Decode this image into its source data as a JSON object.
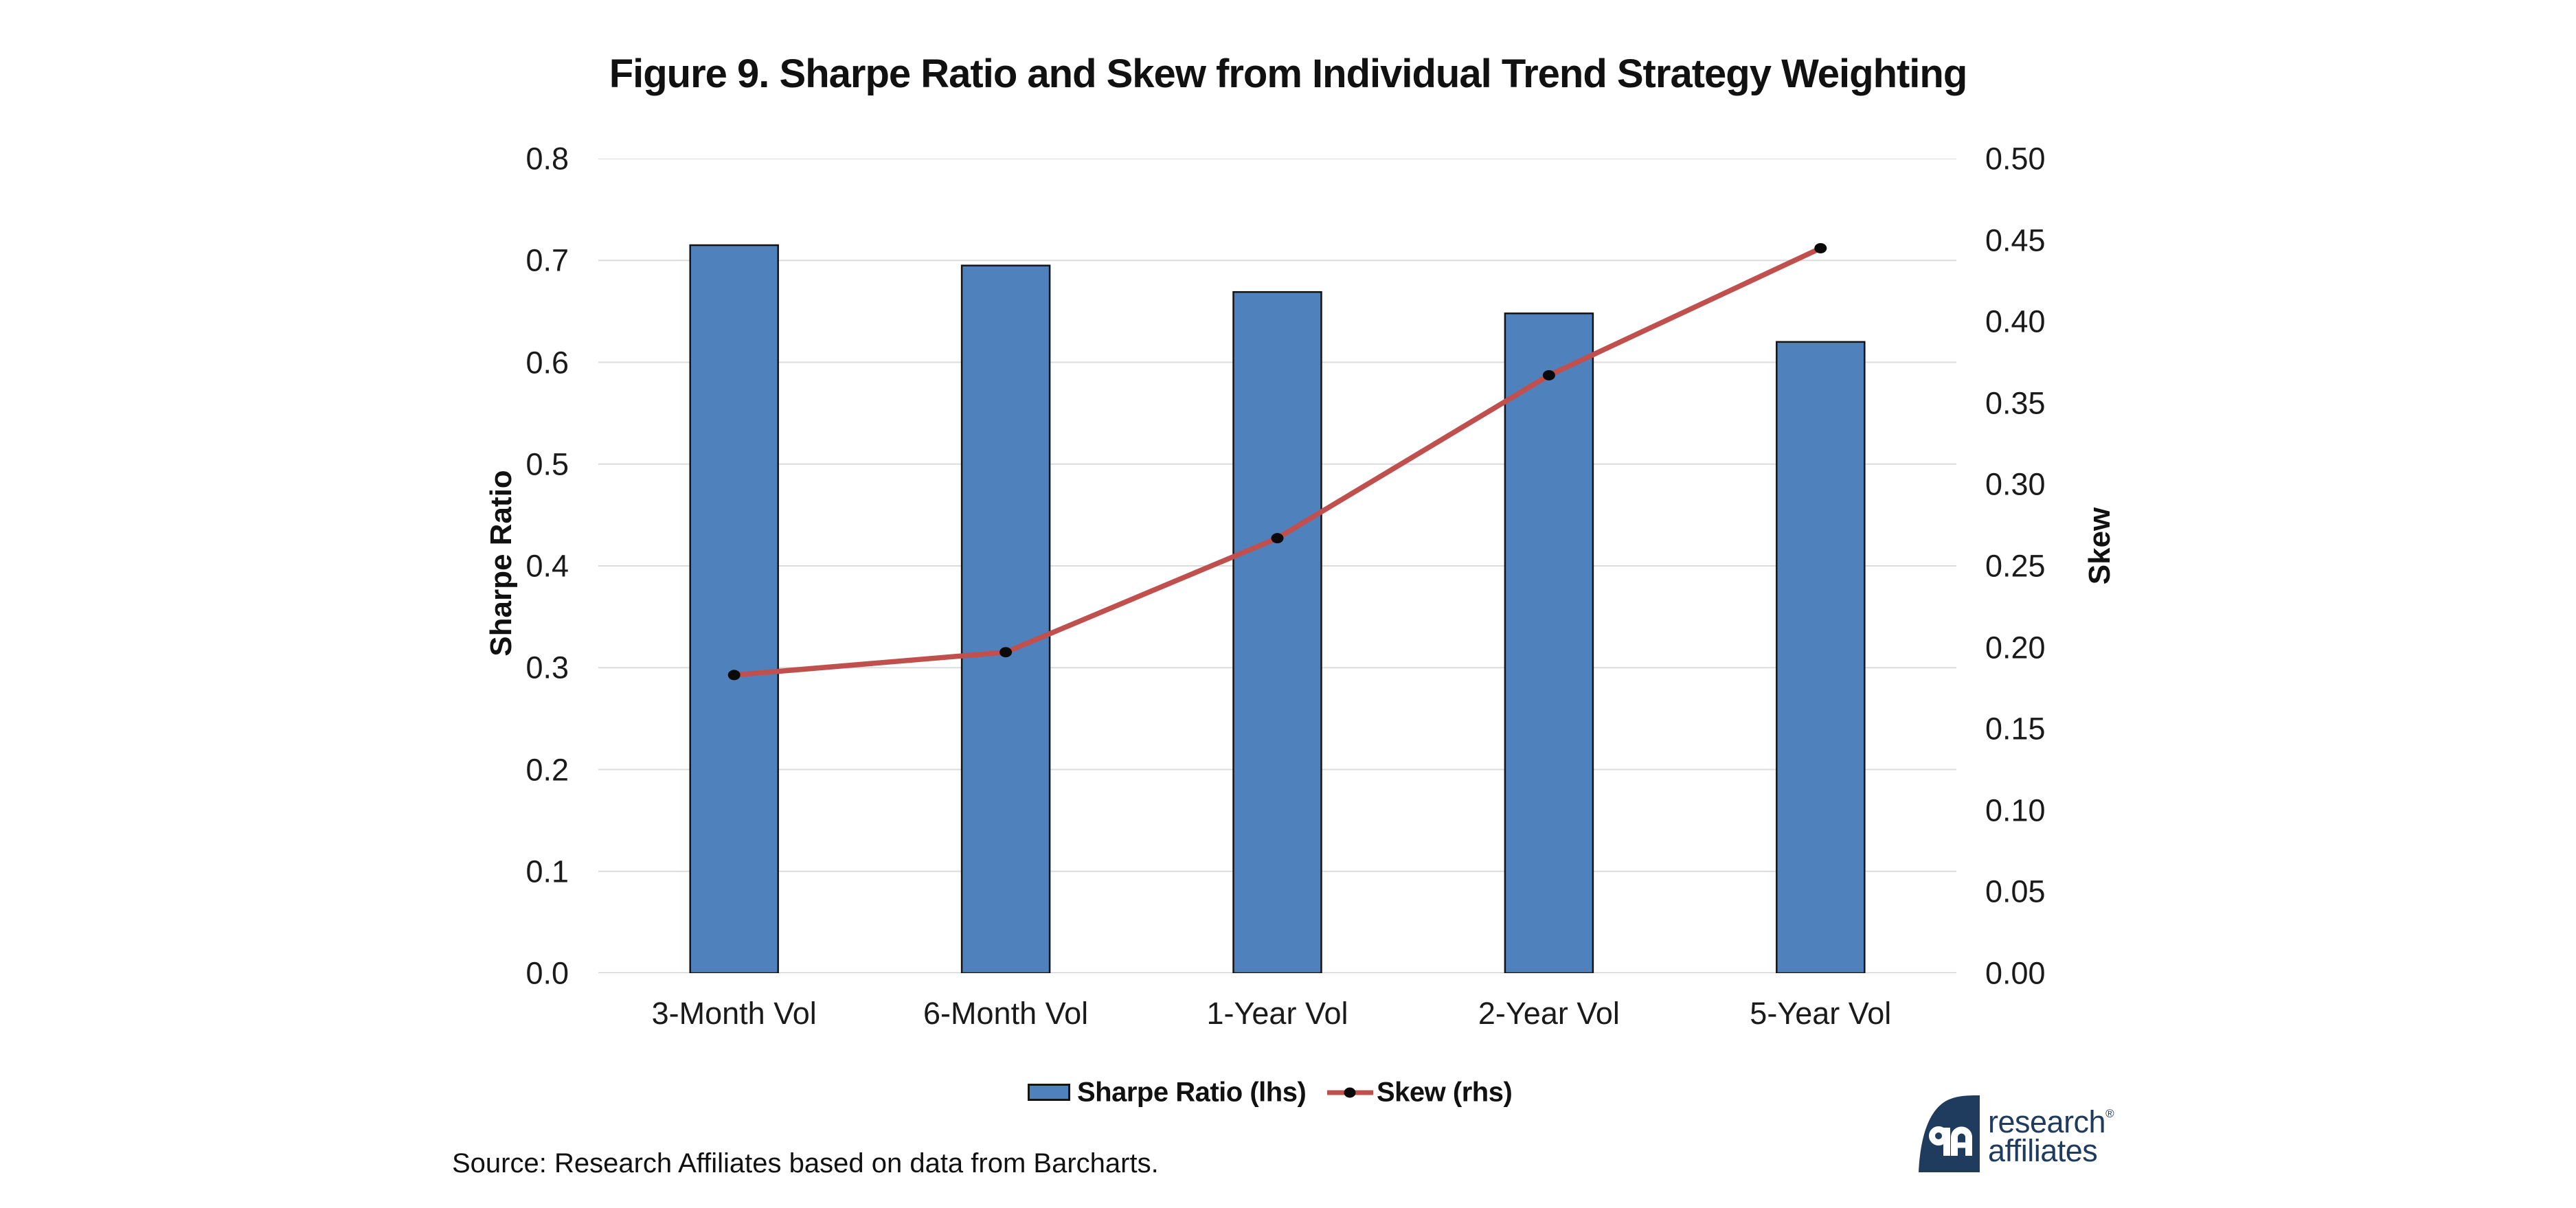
{
  "figure": {
    "title": "Figure 9. Sharpe Ratio and Skew from Individual Trend Strategy Weighting",
    "source_note": "Source: Research Affiliates based on data from Barcharts."
  },
  "legend": {
    "items": [
      {
        "label": "Sharpe Ratio (lhs)",
        "swatch": "bar",
        "color": "#4F81BD",
        "border_color": "#141414"
      },
      {
        "label": "Skew (rhs)",
        "swatch": "line-with-marker",
        "color": "#C0504D",
        "marker_color": "#0a0a0a"
      }
    ]
  },
  "logo": {
    "monogram": "RA",
    "line1": "research",
    "line2": "affiliates",
    "registered": "®",
    "navy": "#1f3b5d"
  },
  "chart_data": {
    "type": "bar",
    "subtype": "dual-axis column + line",
    "title": "Figure 9. Sharpe Ratio and Skew from Individual Trend Strategy Weighting",
    "categories": [
      "3-Month Vol",
      "6-Month Vol",
      "1-Year Vol",
      "2-Year Vol",
      "5-Year Vol"
    ],
    "series": [
      {
        "name": "Sharpe Ratio (lhs)",
        "type": "bar",
        "axis": "left",
        "color": "#4F81BD",
        "border_color": "#141414",
        "values": [
          0.715,
          0.695,
          0.669,
          0.648,
          0.62
        ]
      },
      {
        "name": "Skew (rhs)",
        "type": "line",
        "axis": "right",
        "color": "#C0504D",
        "marker_color": "#0a0a0a",
        "values": [
          0.183,
          0.197,
          0.267,
          0.367,
          0.445
        ]
      }
    ],
    "left_axis": {
      "title": "Sharpe Ratio",
      "min": 0.0,
      "max": 0.8,
      "step": 0.1,
      "decimals": 1
    },
    "right_axis": {
      "title": "Skew",
      "min": 0.0,
      "max": 0.5,
      "step": 0.05,
      "decimals": 2
    },
    "grid": {
      "show": true,
      "orientation": "horizontal",
      "follows_axis": "left",
      "color": "#dcdcdc",
      "baseline_color": "#cfcfcf"
    },
    "legend_position": "bottom",
    "background": "#ffffff"
  }
}
